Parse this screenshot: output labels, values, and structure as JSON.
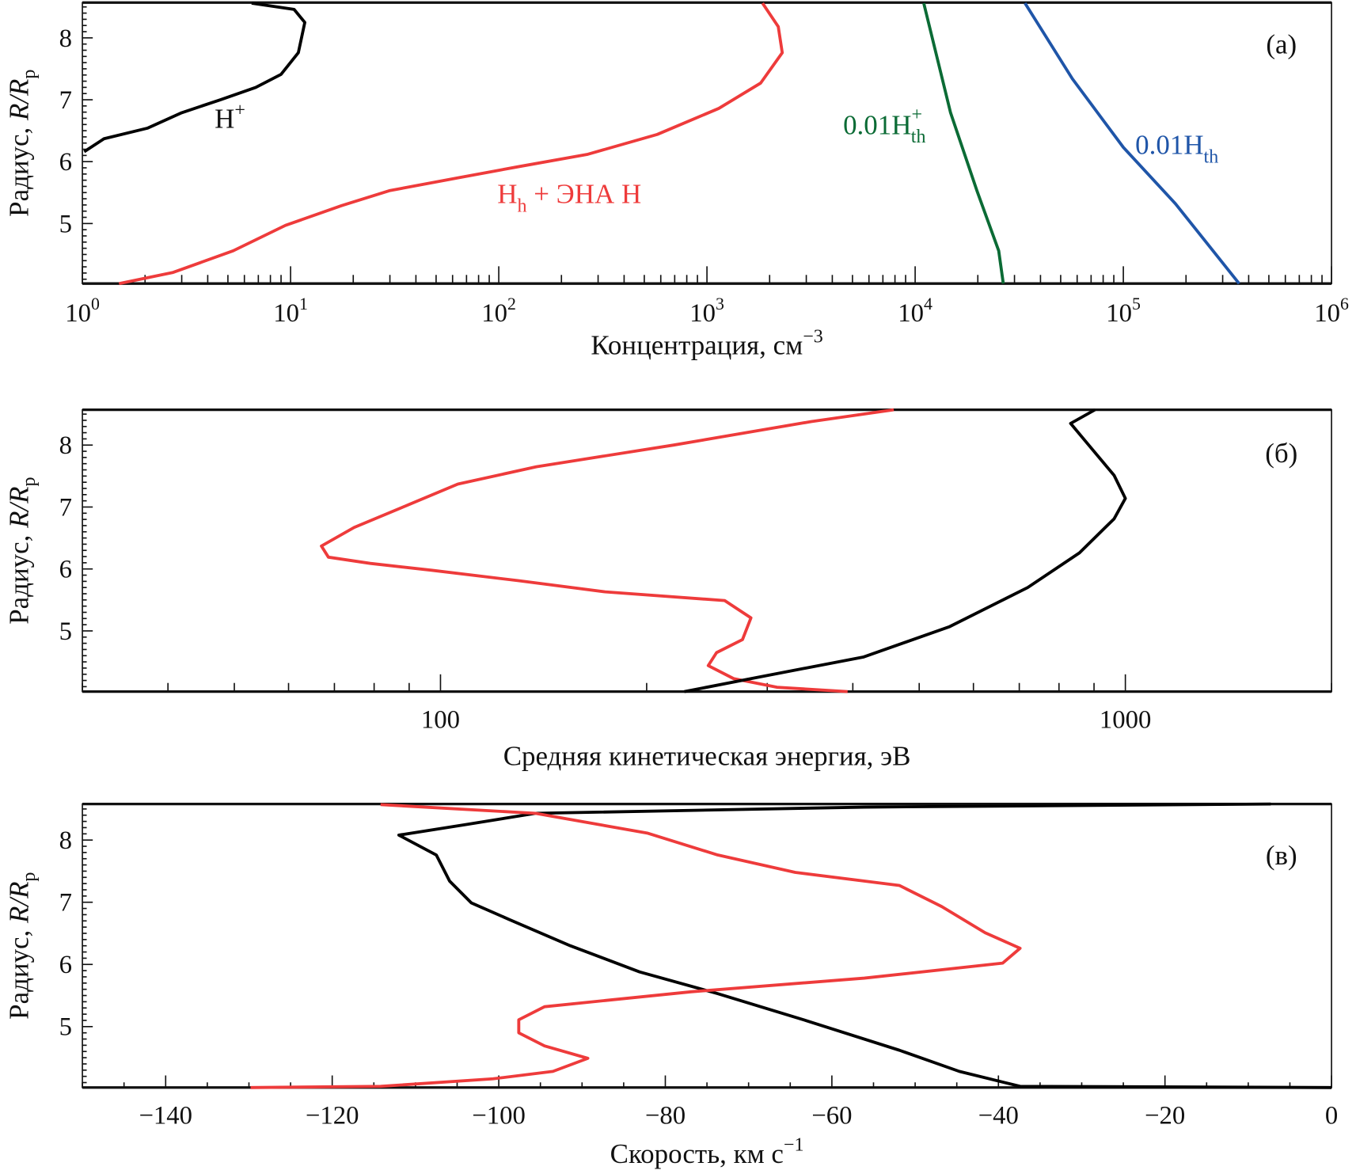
{
  "chart_data": [
    {
      "type": "line",
      "panel_label": "(а)",
      "xlabel": "Концентрация, см",
      "xlabel_sup": "−3",
      "ylabel": "Радиус, ",
      "ylabel_italic": "R/R",
      "ylabel_sub": "p",
      "xscale": "log",
      "xlim": [
        1,
        1000000
      ],
      "ylim": [
        4.03,
        8.57
      ],
      "xticks": [
        {
          "base": "10",
          "exp": "0"
        },
        {
          "base": "10",
          "exp": "1"
        },
        {
          "base": "10",
          "exp": "2"
        },
        {
          "base": "10",
          "exp": "3"
        },
        {
          "base": "10",
          "exp": "4"
        },
        {
          "base": "10",
          "exp": "5"
        },
        {
          "base": "10",
          "exp": "6"
        }
      ],
      "yticks": [
        "5",
        "6",
        "7",
        "8"
      ],
      "series": [
        {
          "label": {
            "base": "H",
            "sub": "",
            "sup": "+"
          },
          "color": "#000000",
          "x": [
            6.5,
            10.4,
            11.7,
            10.9,
            9.0,
            6.8,
            4.6,
            3.0,
            2.05,
            1.27,
            1.02
          ],
          "y": [
            8.56,
            8.46,
            8.25,
            7.76,
            7.41,
            7.2,
            7.0,
            6.79,
            6.54,
            6.37,
            6.16
          ]
        },
        {
          "label": {
            "base": "H",
            "sub": "h",
            "sup": "",
            "rest": " + ЭНА H"
          },
          "color": "#ee3b3b",
          "x": [
            1.5,
            2.73,
            5.3,
            9.45,
            17.6,
            29.8,
            64.1,
            125,
            268,
            577,
            1140,
            1810,
            2300,
            2200,
            1850
          ],
          "y": [
            4.03,
            4.21,
            4.56,
            4.97,
            5.29,
            5.53,
            5.74,
            5.92,
            6.12,
            6.44,
            6.86,
            7.27,
            7.76,
            8.18,
            8.56
          ]
        },
        {
          "label": {
            "base": "0.01H",
            "sub": "th",
            "sup": "+"
          },
          "color": "#0b6b35",
          "x": [
            11000,
            14800,
            19800,
            25200,
            26500
          ],
          "y": [
            8.56,
            6.79,
            5.53,
            4.56,
            4.03
          ]
        },
        {
          "label": {
            "base": "0.01H",
            "sub": "th",
            "sup": ""
          },
          "color": "#1f55a8",
          "x": [
            33700,
            56900,
            100000,
            178000,
            360000
          ],
          "y": [
            8.56,
            7.34,
            6.23,
            5.32,
            4.03
          ]
        }
      ]
    },
    {
      "type": "line",
      "panel_label": "(б)",
      "xlabel": "Средняя кинетическая энергия, эВ",
      "ylabel": "Радиус, ",
      "ylabel_italic": "R/R",
      "ylabel_sub": "p",
      "xscale": "log",
      "xlim": [
        30,
        2000
      ],
      "ylim": [
        4.02,
        8.57
      ],
      "xticks": [
        {
          "value": 100,
          "label": "100"
        },
        {
          "value": 1000,
          "label": "1000"
        }
      ],
      "yticks": [
        "5",
        "6",
        "7",
        "8"
      ],
      "series": [
        {
          "color": "#ee3b3b",
          "x": [
            459,
            348,
            219,
            138,
            106,
            89,
            74.8,
            67,
            68.6,
            79,
            97,
            130,
            174,
            260,
            284,
            276,
            253,
            246,
            268,
            310,
            393
          ],
          "y": [
            8.57,
            8.38,
            8.0,
            7.65,
            7.37,
            7.02,
            6.67,
            6.37,
            6.19,
            6.09,
            5.98,
            5.81,
            5.63,
            5.49,
            5.21,
            4.86,
            4.65,
            4.44,
            4.23,
            4.09,
            4.02
          ]
        },
        {
          "color": "#000000",
          "x": [
            227,
            284,
            415,
            554,
            720,
            857,
            963,
            1000,
            963,
            884,
            832,
            903
          ],
          "y": [
            4.02,
            4.23,
            4.58,
            5.07,
            5.7,
            6.26,
            6.81,
            7.14,
            7.51,
            8.0,
            8.35,
            8.57
          ]
        }
      ]
    },
    {
      "type": "line",
      "panel_label": "(в)",
      "xlabel": "Скорость, км с",
      "xlabel_sup": "−1",
      "ylabel": "Радиус, ",
      "ylabel_italic": "R/R",
      "ylabel_sub": "p",
      "xscale": "linear",
      "xlim": [
        -150,
        0
      ],
      "ylim": [
        4.02,
        8.58
      ],
      "xticks": [
        "−140",
        "−120",
        "−100",
        "−80",
        "−60",
        "−40",
        "−20",
        "0"
      ],
      "yticks": [
        "5",
        "6",
        "7",
        "8"
      ],
      "series": [
        {
          "color": "#000000",
          "x": [
            -7.3,
            -56.1,
            -95.6,
            -103.9,
            -112,
            -107.5,
            -105.9,
            -103.3,
            -98.7,
            -91.4,
            -83.1,
            -73.7,
            -63.4,
            -51.9,
            -44.7,
            -37.4,
            0
          ],
          "y": [
            8.58,
            8.53,
            8.43,
            8.25,
            8.08,
            7.76,
            7.34,
            6.99,
            6.72,
            6.3,
            5.88,
            5.53,
            5.11,
            4.62,
            4.28,
            4.04,
            4.02
          ]
        },
        {
          "color": "#ee3b3b",
          "x": [
            -114.2,
            -95.6,
            -82.1,
            -73.7,
            -64.4,
            -51.9,
            -46.8,
            -41.6,
            -37.4,
            -39.5,
            -56.1,
            -76.9,
            -87.2,
            -94.5,
            -97.6,
            -97.6,
            -94.5,
            -89.3,
            -93.5,
            -100.7,
            -114.2,
            -129.8
          ],
          "y": [
            8.57,
            8.43,
            8.11,
            7.76,
            7.48,
            7.27,
            6.93,
            6.51,
            6.26,
            6.02,
            5.78,
            5.56,
            5.42,
            5.32,
            5.11,
            4.9,
            4.69,
            4.49,
            4.28,
            4.16,
            4.04,
            4.02
          ]
        }
      ]
    }
  ]
}
